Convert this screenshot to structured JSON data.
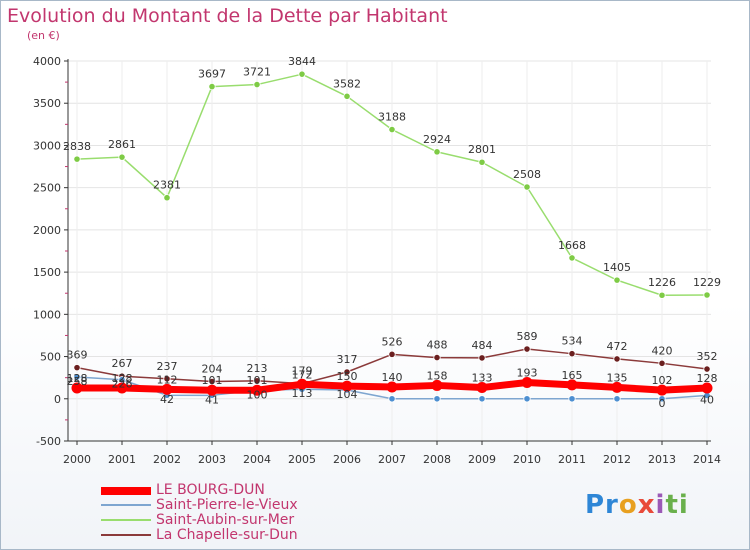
{
  "title": "Evolution du Montant de la Dette par Habitant",
  "unit_label": "(en €)",
  "logo_text": "Proxiti",
  "chart_data": {
    "type": "line",
    "title": "Evolution du Montant de la Dette par Habitant",
    "ylabel": "(en €)",
    "xlabel": "",
    "x": [
      "2000",
      "2001",
      "2002",
      "2003",
      "2004",
      "2005",
      "2006",
      "2007",
      "2008",
      "2009",
      "2010",
      "2011",
      "2012",
      "2013",
      "2014"
    ],
    "ylim": [
      -500,
      4000
    ],
    "yticks": [
      -500,
      0,
      500,
      1000,
      1500,
      2000,
      2500,
      3000,
      3500,
      4000
    ],
    "legend_position": "bottom-left",
    "series": [
      {
        "name": "LE BOURG-DUN",
        "color": "#ff0000",
        "marker": "#ff0000",
        "values": [
          128,
          128,
          112,
          101,
          101,
          172,
          150,
          140,
          158,
          133,
          193,
          165,
          135,
          102,
          128
        ],
        "labels_shown": [
          true,
          true,
          true,
          true,
          true,
          true,
          true,
          true,
          true,
          true,
          true,
          true,
          true,
          true,
          true
        ]
      },
      {
        "name": "Saint-Pierre-le-Vieux",
        "color": "#7ea6d0",
        "marker": "#4d8fd1",
        "values": [
          258,
          226,
          42,
          41,
          100,
          113,
          104,
          0,
          0,
          0,
          0,
          0,
          0,
          0,
          40
        ],
        "labels_shown": [
          true,
          true,
          true,
          true,
          true,
          true,
          true,
          false,
          false,
          false,
          false,
          false,
          false,
          true,
          true
        ]
      },
      {
        "name": "Saint-Aubin-sur-Mer",
        "color": "#99dd6e",
        "marker": "#7ecb45",
        "values": [
          2838,
          2861,
          2381,
          3697,
          3721,
          3844,
          3582,
          3188,
          2924,
          2801,
          2508,
          1668,
          1405,
          1226,
          1229
        ],
        "labels_shown": [
          true,
          true,
          true,
          true,
          true,
          true,
          true,
          true,
          true,
          true,
          true,
          true,
          true,
          true,
          true
        ]
      },
      {
        "name": "La Chapelle-sur-Dun",
        "color": "#8b3a3a",
        "marker": "#6b1f1f",
        "values": [
          369,
          267,
          237,
          204,
          213,
          179,
          317,
          526,
          488,
          484,
          589,
          534,
          472,
          420,
          352
        ],
        "labels_shown": [
          true,
          true,
          true,
          true,
          true,
          true,
          true,
          true,
          true,
          true,
          true,
          true,
          true,
          true,
          true
        ]
      }
    ]
  }
}
